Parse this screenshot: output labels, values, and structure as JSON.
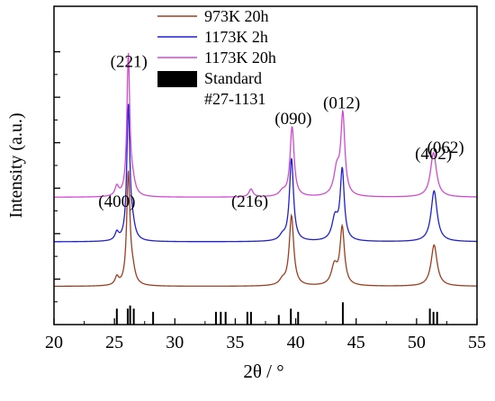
{
  "chart_data": {
    "type": "line",
    "title": "",
    "xlabel": "2θ / °",
    "ylabel": "Intensity (a.u.)",
    "xlim": [
      20,
      55
    ],
    "ylim": [
      0,
      100
    ],
    "x_ticks": [
      20,
      25,
      30,
      35,
      40,
      45,
      50,
      55
    ],
    "y_ticks_labeled": false,
    "grid": false,
    "legend_position": "top-center",
    "legend": [
      {
        "label": "973K 20h",
        "color": "#9e3e1e",
        "kind": "line"
      },
      {
        "label": "1173K 2h",
        "color": "#1f1fd6",
        "kind": "line"
      },
      {
        "label": "1173K 20h",
        "color": "#d24ad2",
        "kind": "line"
      },
      {
        "label": "Standard",
        "color": "#000000",
        "kind": "bar"
      },
      {
        "label": "#27-1131",
        "color": "",
        "kind": "text"
      }
    ],
    "peak_labels": [
      {
        "text": "(400)",
        "x": 25.2,
        "y": 37
      },
      {
        "text": "(221)",
        "x": 26.2,
        "y": 81
      },
      {
        "text": "(216)",
        "x": 36.2,
        "y": 37
      },
      {
        "text": "(090)",
        "x": 39.8,
        "y": 63
      },
      {
        "text": "(012)",
        "x": 43.8,
        "y": 68
      },
      {
        "text": "(402)",
        "x": 51.4,
        "y": 52
      },
      {
        "text": "(062)",
        "x": 52.4,
        "y": 54
      }
    ],
    "series": [
      {
        "name": "973K 20h",
        "color": "#9e3e1e",
        "baseline": 12,
        "peaks": [
          {
            "x": 25.2,
            "h": 2.5,
            "w": 0.18
          },
          {
            "x": 26.15,
            "h": 35,
            "w": 0.16
          },
          {
            "x": 26.5,
            "h": 4,
            "w": 0.25
          },
          {
            "x": 38.9,
            "h": 1.5,
            "w": 0.3
          },
          {
            "x": 39.65,
            "h": 22,
            "w": 0.22
          },
          {
            "x": 43.2,
            "h": 6,
            "w": 0.3
          },
          {
            "x": 43.85,
            "h": 18,
            "w": 0.22
          },
          {
            "x": 51.45,
            "h": 13,
            "w": 0.3
          }
        ]
      },
      {
        "name": "1173K 2h",
        "color": "#1f1fd6",
        "baseline": 26,
        "peaks": [
          {
            "x": 25.2,
            "h": 2.5,
            "w": 0.18
          },
          {
            "x": 26.15,
            "h": 42,
            "w": 0.15
          },
          {
            "x": 26.5,
            "h": 4,
            "w": 0.25
          },
          {
            "x": 38.9,
            "h": 1.5,
            "w": 0.3
          },
          {
            "x": 39.65,
            "h": 26,
            "w": 0.2
          },
          {
            "x": 43.25,
            "h": 7,
            "w": 0.3
          },
          {
            "x": 43.85,
            "h": 22,
            "w": 0.2
          },
          {
            "x": 51.45,
            "h": 16,
            "w": 0.3
          }
        ]
      },
      {
        "name": "1173K 20h",
        "color": "#d24ad2",
        "baseline": 40,
        "peaks": [
          {
            "x": 25.2,
            "h": 3,
            "w": 0.18
          },
          {
            "x": 26.15,
            "h": 44,
            "w": 0.14
          },
          {
            "x": 26.5,
            "h": 4,
            "w": 0.25
          },
          {
            "x": 36.3,
            "h": 2.5,
            "w": 0.2
          },
          {
            "x": 38.9,
            "h": 1.5,
            "w": 0.3
          },
          {
            "x": 39.7,
            "h": 22,
            "w": 0.2
          },
          {
            "x": 43.4,
            "h": 8,
            "w": 0.3
          },
          {
            "x": 43.9,
            "h": 25,
            "w": 0.2
          },
          {
            "x": 51.4,
            "h": 14,
            "w": 0.3
          }
        ]
      }
    ],
    "standard_lines": [
      {
        "x": 25.2,
        "h": 5
      },
      {
        "x": 26.1,
        "h": 5
      },
      {
        "x": 26.3,
        "h": 6
      },
      {
        "x": 26.6,
        "h": 5
      },
      {
        "x": 28.2,
        "h": 4
      },
      {
        "x": 33.4,
        "h": 4
      },
      {
        "x": 33.8,
        "h": 4
      },
      {
        "x": 34.2,
        "h": 4
      },
      {
        "x": 36.0,
        "h": 4
      },
      {
        "x": 36.3,
        "h": 4
      },
      {
        "x": 38.6,
        "h": 3
      },
      {
        "x": 39.6,
        "h": 5
      },
      {
        "x": 40.2,
        "h": 4
      },
      {
        "x": 43.9,
        "h": 7
      },
      {
        "x": 51.1,
        "h": 5
      },
      {
        "x": 51.4,
        "h": 4
      },
      {
        "x": 51.7,
        "h": 4
      }
    ]
  }
}
